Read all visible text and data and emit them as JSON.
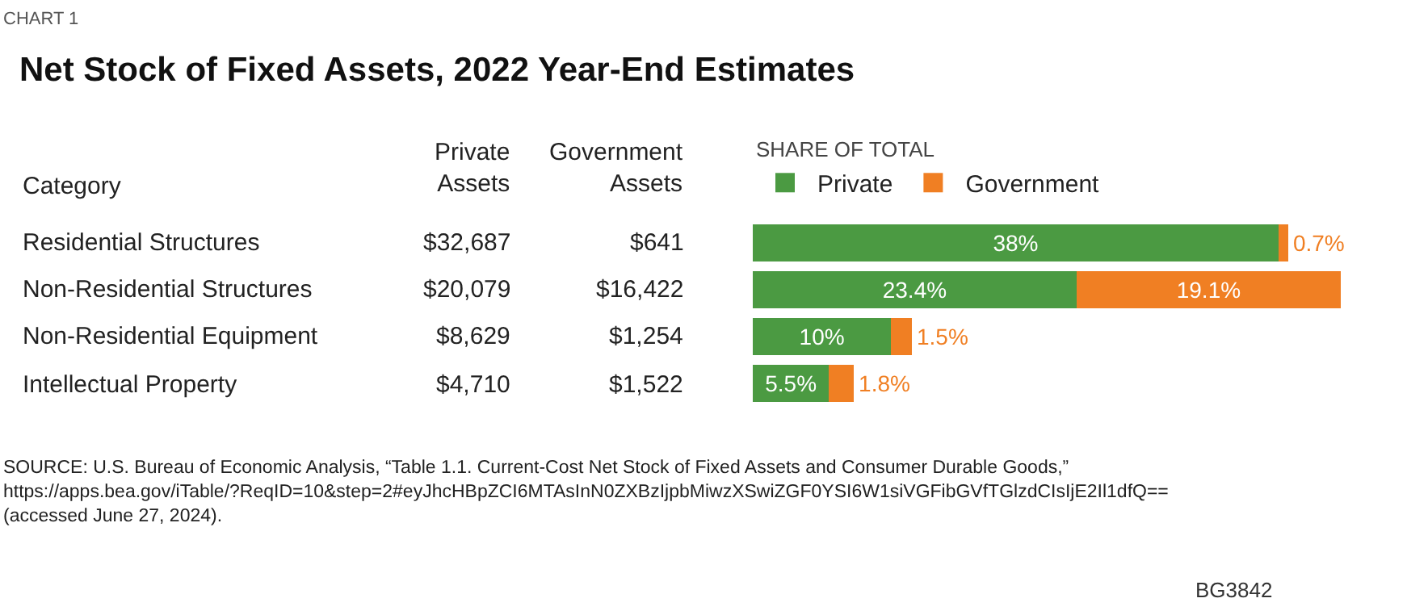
{
  "chart_data": [
    {
      "type": "other",
      "title": "Net Stock of Fixed Assets, 2022 Year-End Estimates",
      "subtitle": "CHART 1",
      "ylabel": "Category",
      "categories": [
        "Private\nAssets",
        "Government\nAssets"
      ],
      "y_categories": [
        "Residential Structures",
        "Non-Residential Structures",
        "Non-Residential Equipment",
        "Intellectual Property"
      ],
      "cell_labels": [
        [
          "$32,687",
          "$641"
        ],
        [
          "$20,079",
          "$16,422"
        ],
        [
          "$8,629",
          "$1,254"
        ],
        [
          "$4,710",
          "$1,522"
        ]
      ],
      "annotations": [
        "SOURCE: U.S. Bureau of Economic Analysis, “Table 1.1. Current-Cost Net Stock of Fixed Assets and Consumer Durable Goods,”\nhttps://apps.bea.gov/iTable/?ReqID=10&step=2#eyJhcHBpZCI6MTAsInN0ZXBzIjpbMiwzXSwiZGF0YSI6W1siVGFibGVfTGlzdCIsIjE2Il1dfQ==\n(accessed June 27, 2024).",
        "BG3842"
      ]
    },
    {
      "type": "bar",
      "orientation": "horizontal",
      "stacked": true,
      "categories": [
        null,
        null,
        null,
        null
      ],
      "legend_title": "SHARE OF TOTAL",
      "legend": "top",
      "tick_labels": false,
      "xlim": [
        0,
        42.5
      ],
      "series": [
        {
          "name": "Private",
          "color": "#4b9a42",
          "values": [
            38,
            23.4,
            10,
            5.5
          ],
          "value_labels": [
            "38%",
            "23.4%",
            "10%",
            "5.5%"
          ]
        },
        {
          "name": "Government",
          "color": "#f07f23",
          "values": [
            0.7,
            19.1,
            1.5,
            1.8
          ],
          "value_labels": [
            "0.7%",
            "19.1%",
            "1.5%",
            "1.8%"
          ]
        }
      ]
    }
  ]
}
